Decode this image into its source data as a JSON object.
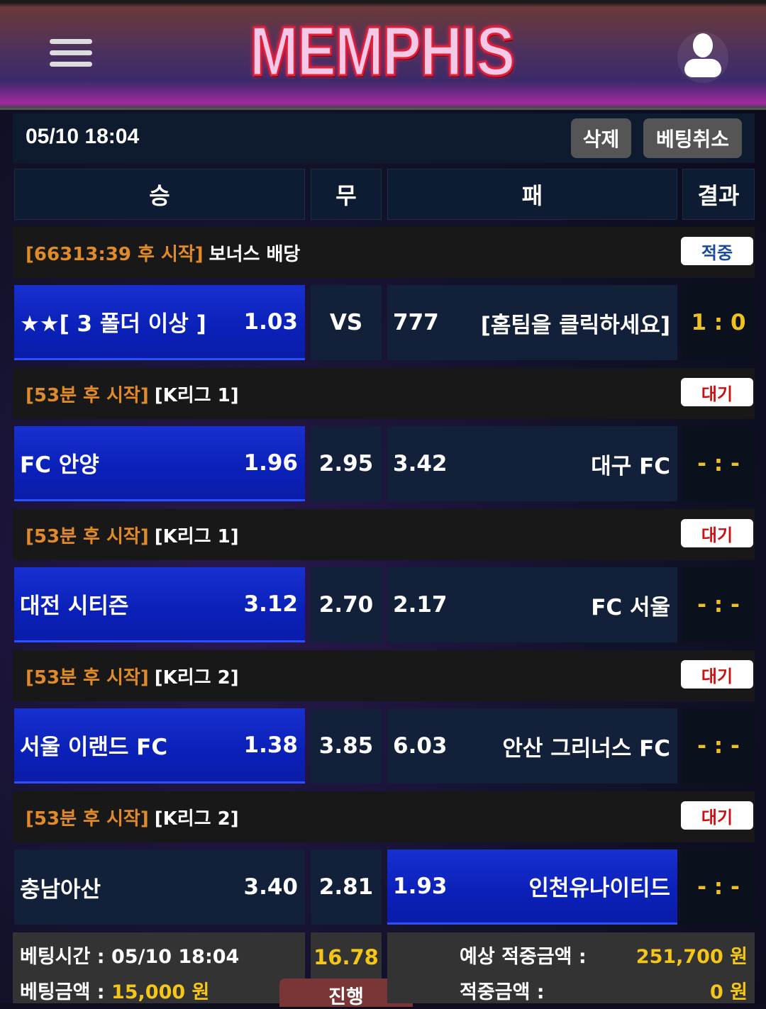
{
  "header": {
    "logo": "MEMPHIS",
    "menu_icon": "hamburger-icon",
    "user_icon": "user-icon"
  },
  "topbar": {
    "datetime": "05/10 18:04",
    "delete_label": "삭제",
    "cancel_label": "베팅취소"
  },
  "columns": {
    "win": "승",
    "draw": "무",
    "lose": "패",
    "result": "결과"
  },
  "colors": {
    "selected": "#0a20b8",
    "orange": "#e08a2a",
    "yellow": "#f5c518",
    "hit": "#1a4aa0",
    "wait": "#cc1010"
  },
  "games": [
    {
      "when": "[66313:39 후 시작]",
      "league": "보너스 배당",
      "status": "적중",
      "status_color": "#1a4aa0",
      "home": "★★[ 3 폴더 이상 ]",
      "home_odds": "1.03",
      "draw": "VS",
      "away_odds": "777",
      "away": "[홈팀을 클릭하세요]",
      "score": "1 : 0",
      "selected": "home"
    },
    {
      "when": "[53분 후 시작]",
      "league": "[K리그 1]",
      "status": "대기",
      "status_color": "#cc1010",
      "home": "FC 안양",
      "home_odds": "1.96",
      "draw": "2.95",
      "away_odds": "3.42",
      "away": "대구 FC",
      "score": "- : -",
      "selected": "home"
    },
    {
      "when": "[53분 후 시작]",
      "league": "[K리그 1]",
      "status": "대기",
      "status_color": "#cc1010",
      "home": "대전 시티즌",
      "home_odds": "3.12",
      "draw": "2.70",
      "away_odds": "2.17",
      "away": "FC 서울",
      "score": "- : -",
      "selected": "home"
    },
    {
      "when": "[53분 후 시작]",
      "league": "[K리그 2]",
      "status": "대기",
      "status_color": "#cc1010",
      "home": "서울 이랜드 FC",
      "home_odds": "1.38",
      "draw": "3.85",
      "away_odds": "6.03",
      "away": "안산 그리너스 FC",
      "score": "- : -",
      "selected": "home"
    },
    {
      "when": "[53분 후 시작]",
      "league": "[K리그 2]",
      "status": "대기",
      "status_color": "#cc1010",
      "home": "충남아산",
      "home_odds": "3.40",
      "draw": "2.81",
      "away_odds": "1.93",
      "away": "인천유나이티드",
      "score": "- : -",
      "selected": "away"
    }
  ],
  "footer": {
    "bet_time_label": "베팅시간 :",
    "bet_time": "05/10 18:04",
    "bet_amount_label": "베팅금액 :",
    "bet_amount": "15,000 원",
    "total_odds": "16.78",
    "status": "진행",
    "expected_label": "예상 적중금액 :",
    "expected": "251,700 원",
    "won_label": "적중금액 :",
    "won": "0 원"
  }
}
